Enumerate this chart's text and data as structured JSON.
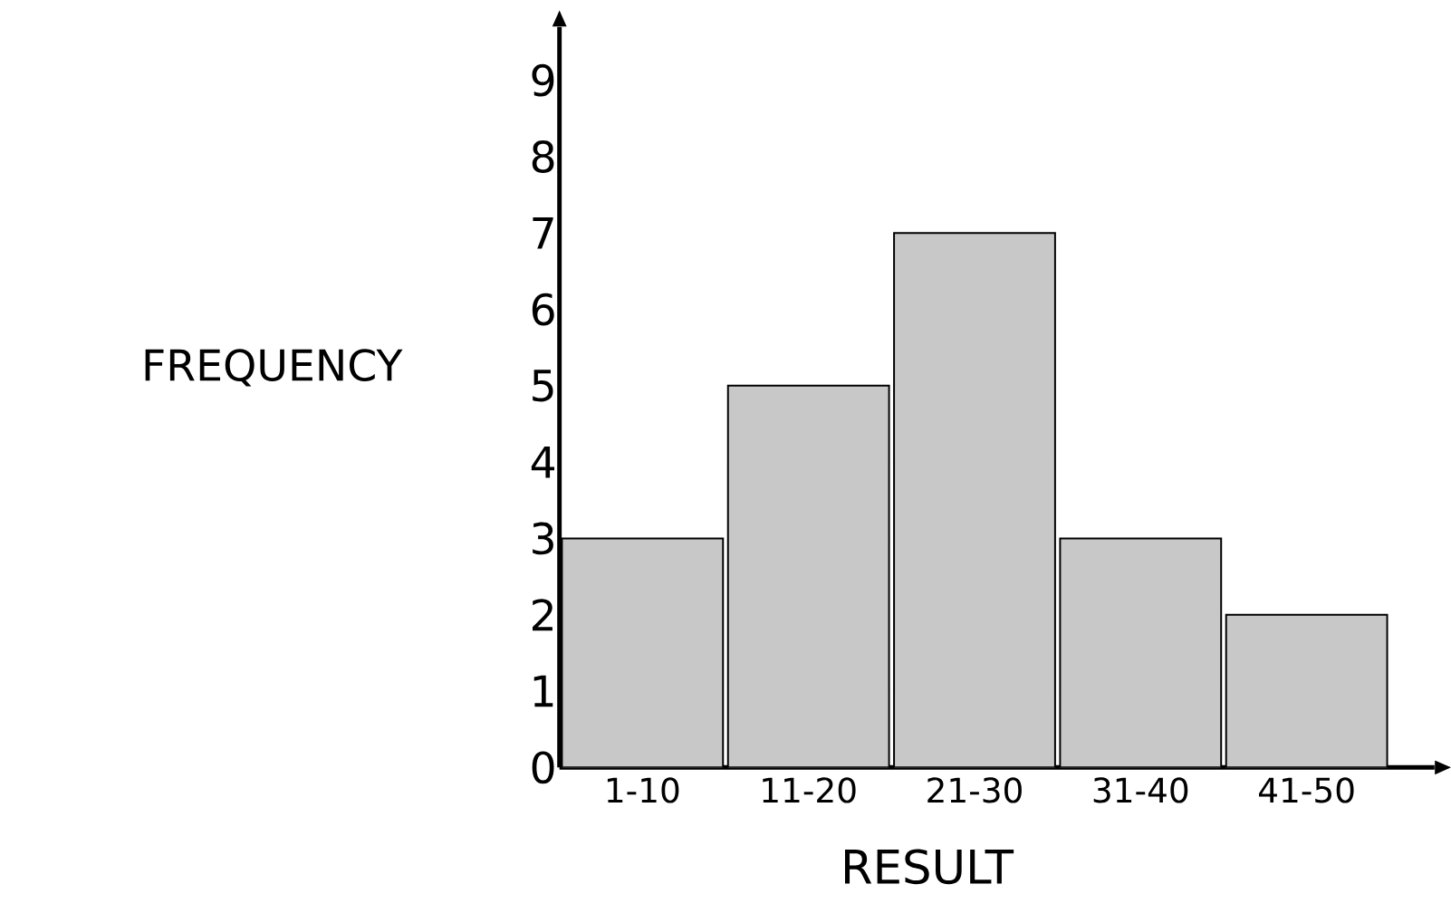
{
  "chart_data": {
    "type": "bar",
    "xlabel": "RESULT",
    "ylabel": "FREQUENCY",
    "categories": [
      "1-10",
      "11-20",
      "21-30",
      "31-40",
      "41-50"
    ],
    "values": [
      3,
      5,
      7,
      3,
      2
    ],
    "color": "#c8c8c8",
    "ylim": [
      0,
      9.7
    ],
    "yticks": [
      0,
      1,
      2,
      3,
      4,
      5,
      6,
      7,
      8,
      9
    ],
    "grid": false
  }
}
